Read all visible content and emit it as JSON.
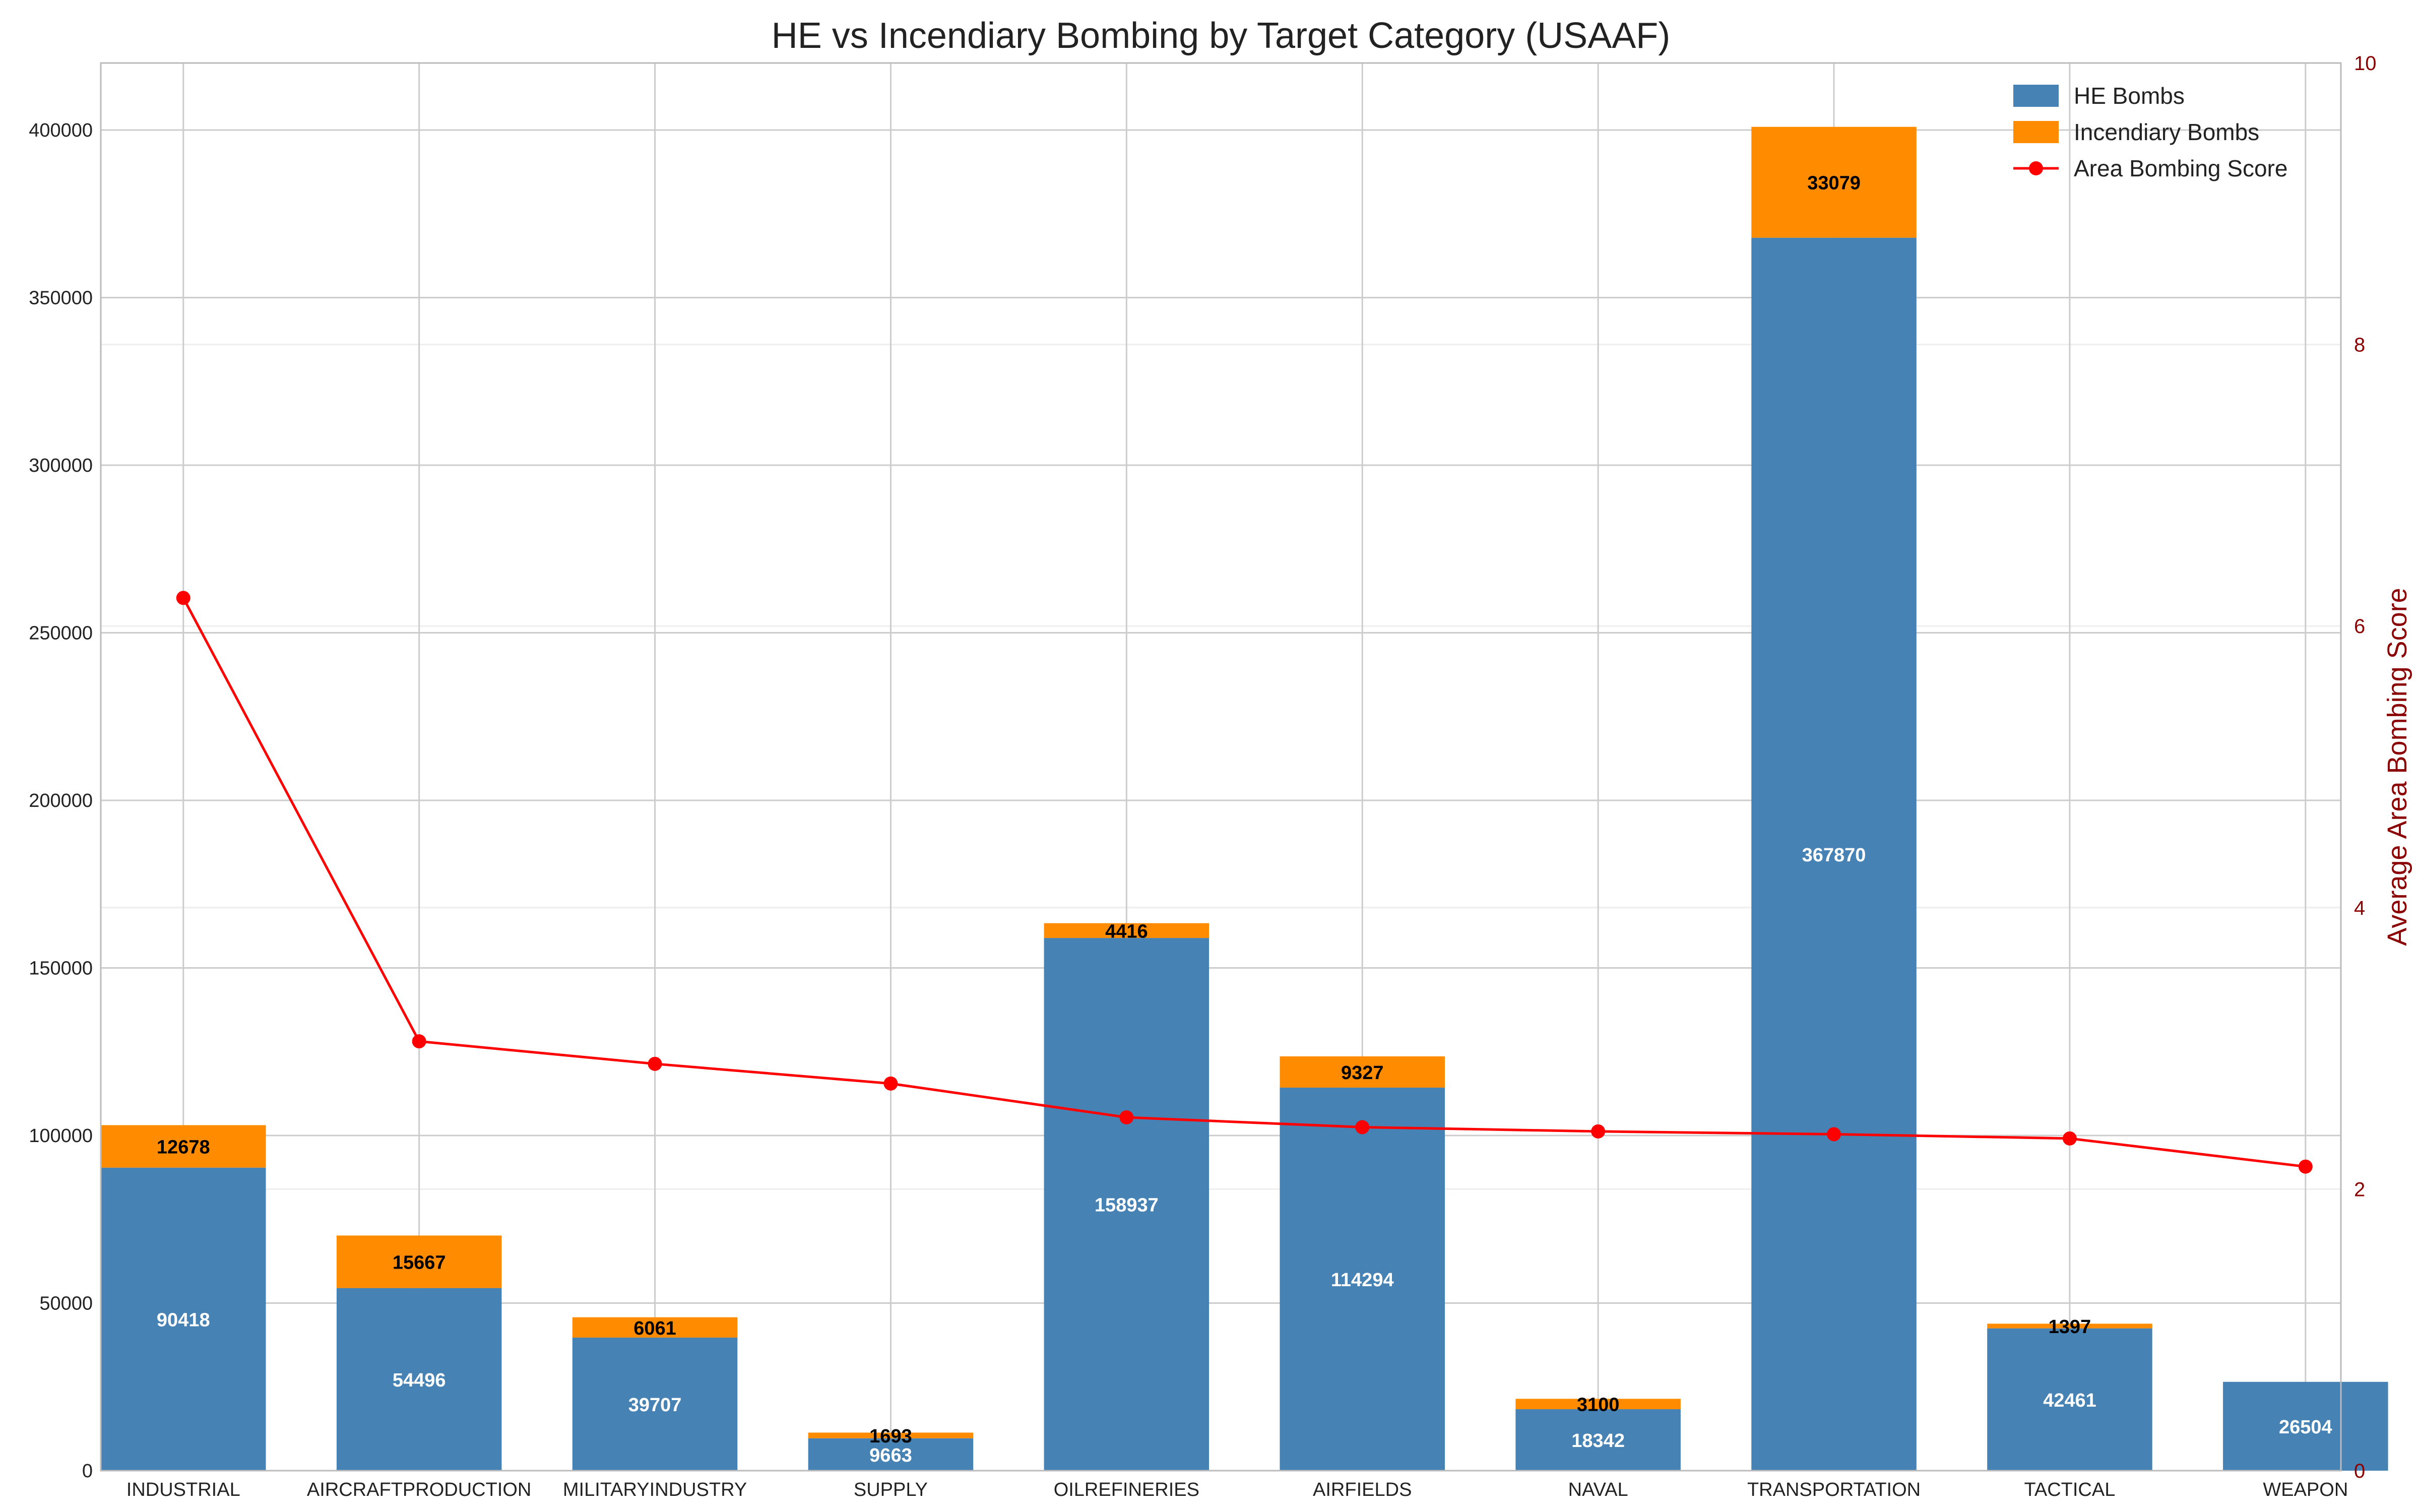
{
  "chart_data": {
    "type": "bar",
    "stacked": true,
    "title": "HE vs Incendiary Bombing by Target Category (USAAF)",
    "xlabel": "",
    "ylabel": "",
    "y2label": "Average Area Bombing Score",
    "categories": [
      "INDUSTRIAL",
      "AIRCRAFTPRODUCTION",
      "MILITARYINDUSTRY",
      "SUPPLY",
      "OILREFINERIES",
      "AIRFIELDS",
      "NAVAL",
      "TRANSPORTATION",
      "TACTICAL",
      "WEAPON"
    ],
    "series": [
      {
        "name": "HE Bombs",
        "type": "bar",
        "axis": "left",
        "color": "#4682b4",
        "values": [
          90418,
          54496,
          39707,
          9663,
          158937,
          114294,
          18342,
          367870,
          42461,
          26504
        ]
      },
      {
        "name": "Incendiary Bombs",
        "type": "bar",
        "axis": "left",
        "color": "#ff8c00",
        "values": [
          12678,
          15667,
          6061,
          1693,
          4416,
          9327,
          3100,
          33079,
          1397,
          0
        ]
      },
      {
        "name": "Area Bombing Score",
        "type": "line",
        "axis": "right",
        "color": "#ff0000",
        "values": [
          6.2,
          3.05,
          2.89,
          2.75,
          2.51,
          2.44,
          2.41,
          2.39,
          2.36,
          2.16
        ]
      }
    ],
    "ylim": [
      0,
      420000
    ],
    "yticks": [
      "0",
      "50000",
      "100000",
      "150000",
      "200000",
      "250000",
      "300000",
      "350000",
      "400000"
    ],
    "y2lim": [
      0,
      10
    ],
    "y2ticks": [
      "0",
      "2",
      "4",
      "6",
      "8",
      "10"
    ],
    "legend_position": "top-right",
    "grid": true
  }
}
